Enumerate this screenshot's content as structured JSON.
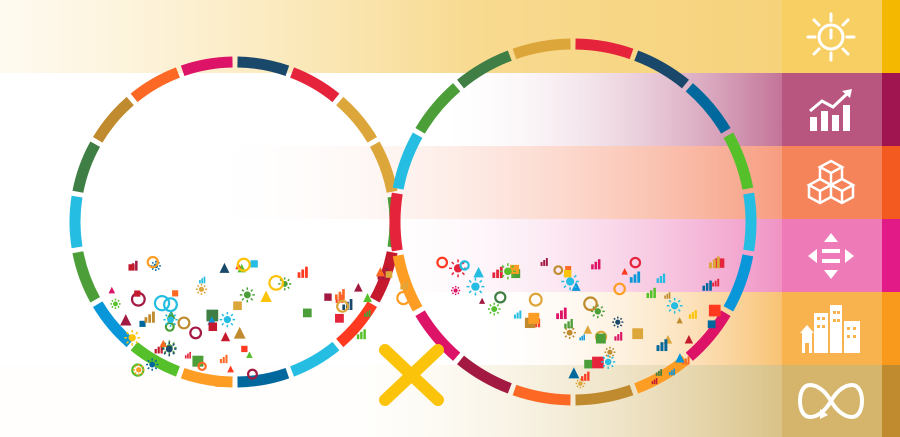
{
  "bands": [
    {
      "id": "energy",
      "tint": "#f7d88a",
      "accent": "#f5b800",
      "icon": "sun-power-icon"
    },
    {
      "id": "growth",
      "tint": "#c4769a",
      "accent": "#a0154f",
      "icon": "growth-chart-icon"
    },
    {
      "id": "industry",
      "tint": "#f7a285",
      "accent": "#f25a1f",
      "icon": "cubes-icon"
    },
    {
      "id": "equality",
      "tint": "#f29ac8",
      "accent": "#e21a87",
      "icon": "equality-arrows-icon"
    },
    {
      "id": "cities",
      "tint": "#f8c373",
      "accent": "#f99a1c",
      "icon": "city-buildings-icon"
    },
    {
      "id": "consumption",
      "tint": "#dcc68e",
      "accent": "#bf8b2e",
      "icon": "infinity-loop-icon"
    }
  ],
  "sdg_colors": [
    "#e5243b",
    "#dda63a",
    "#4c9f38",
    "#c5192d",
    "#ff3a21",
    "#26bde2",
    "#fcc30b",
    "#a21942",
    "#fd6925",
    "#dd1367",
    "#fd9d24",
    "#bf8b2e",
    "#3f7e44",
    "#0a97d9",
    "#56c02b",
    "#00689d",
    "#19486a"
  ]
}
